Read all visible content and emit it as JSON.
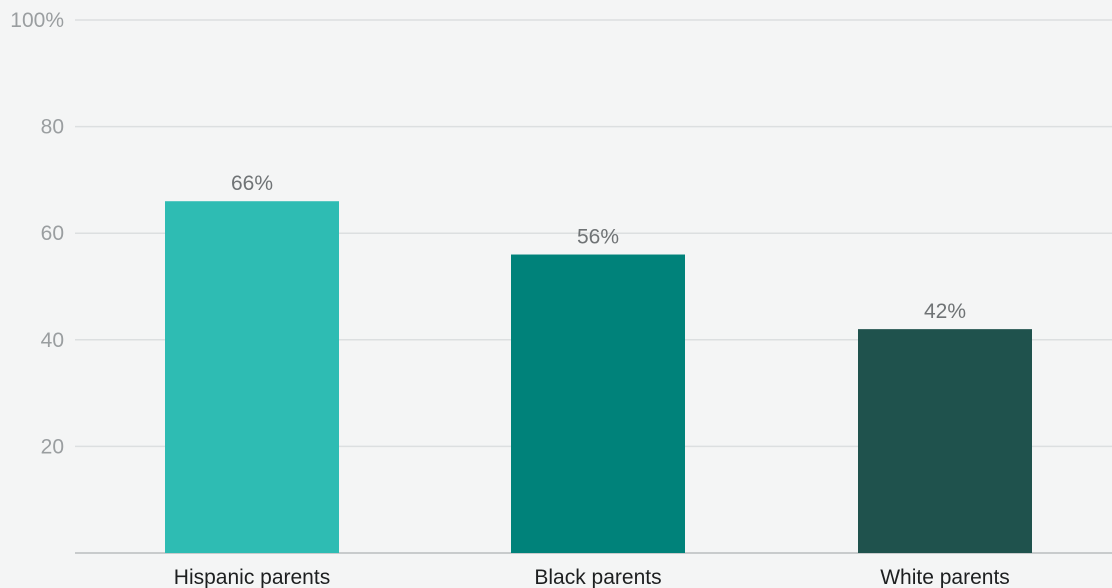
{
  "chart_data": {
    "type": "bar",
    "categories": [
      "Hispanic parents",
      "Black parents",
      "White parents"
    ],
    "values": [
      66,
      56,
      42
    ],
    "value_labels": [
      "66%",
      "56%",
      "42%"
    ],
    "colors": [
      "#2ebcb3",
      "#00827a",
      "#1f524d"
    ],
    "yticks": [
      20,
      40,
      60,
      80,
      100
    ],
    "ytick_labels": [
      "20",
      "40",
      "60",
      "80",
      "100%"
    ],
    "ylim": [
      0,
      100
    ],
    "grid": true,
    "title": "",
    "xlabel": "",
    "ylabel": ""
  }
}
